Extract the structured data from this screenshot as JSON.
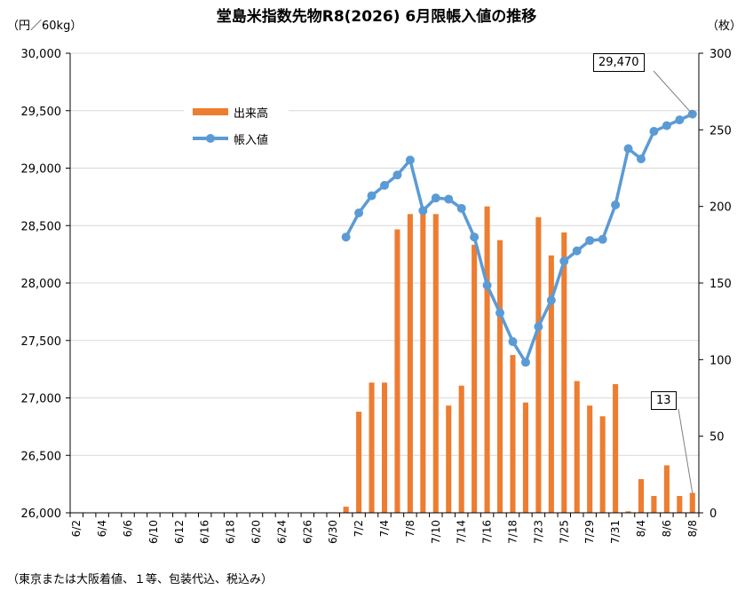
{
  "title": "堂島米指数先物R8(2026) 6月限帳入値の推移",
  "y_left_unit": "（円／60kg）",
  "y_right_unit": "（枚）",
  "footnote": "（東京または大阪着値、１等、包装代込、税込み）",
  "callouts": {
    "last_price": "29,470",
    "last_volume": "13"
  },
  "colors": {
    "volume": "#ED7D31",
    "price": "#5B9BD5",
    "grid": "#D9D9D9"
  },
  "chart_data": {
    "type": "bar+line",
    "title": "堂島米指数先物R8(2026) 6月限帳入値の推移",
    "xlabel": "",
    "ylabel_left": "（円／60kg）",
    "ylabel_right": "（枚）",
    "y_left_range": [
      26000,
      30000
    ],
    "y_left_ticks": [
      "26,000",
      "26,500",
      "27,000",
      "27,500",
      "28,000",
      "28,500",
      "29,000",
      "29,500",
      "30,000"
    ],
    "y_right_range": [
      0,
      300
    ],
    "y_right_ticks": [
      "0",
      "50",
      "100",
      "150",
      "200",
      "250",
      "300"
    ],
    "x_tick_labels": [
      "6/2",
      "6/4",
      "6/6",
      "6/10",
      "6/12",
      "6/16",
      "6/18",
      "6/20",
      "6/24",
      "6/26",
      "6/30",
      "7/2",
      "7/4",
      "7/8",
      "7/10",
      "7/14",
      "7/16",
      "7/18",
      "7/23",
      "7/25",
      "7/29",
      "7/31",
      "8/4",
      "8/6",
      "8/8"
    ],
    "legend": [
      "出来高",
      "帳入値"
    ],
    "legend_position": "upper-left",
    "grid": "horizontal",
    "dates": [
      "6/2",
      "6/3",
      "6/4",
      "6/5",
      "6/6",
      "6/9",
      "6/10",
      "6/11",
      "6/12",
      "6/13",
      "6/16",
      "6/17",
      "6/18",
      "6/19",
      "6/20",
      "6/23",
      "6/24",
      "6/25",
      "6/26",
      "6/27",
      "6/30",
      "7/1",
      "7/2",
      "7/3",
      "7/4",
      "7/7",
      "7/8",
      "7/9",
      "7/10",
      "7/11",
      "7/14",
      "7/15",
      "7/16",
      "7/17",
      "7/18",
      "7/22",
      "7/23",
      "7/24",
      "7/25",
      "7/28",
      "7/29",
      "7/30",
      "7/31",
      "8/1",
      "8/4",
      "8/5",
      "8/6",
      "8/7",
      "8/8"
    ],
    "series": [
      {
        "name": "出来高",
        "type": "bar",
        "axis": "right",
        "values": [
          0,
          0,
          0,
          0,
          0,
          0,
          0,
          0,
          0,
          0,
          0,
          0,
          0,
          0,
          0,
          0,
          0,
          0,
          0,
          0,
          0,
          4,
          66,
          85,
          85,
          185,
          195,
          195,
          195,
          70,
          83,
          175,
          200,
          178,
          103,
          72,
          193,
          168,
          183,
          86,
          70,
          63,
          84,
          1,
          22,
          11,
          31,
          11,
          13
        ]
      },
      {
        "name": "帳入値",
        "type": "line",
        "axis": "left",
        "values": [
          null,
          null,
          null,
          null,
          null,
          null,
          null,
          null,
          null,
          null,
          null,
          null,
          null,
          null,
          null,
          null,
          null,
          null,
          null,
          null,
          null,
          28400,
          28610,
          28760,
          28850,
          28940,
          29070,
          28630,
          28740,
          28730,
          28650,
          28400,
          27980,
          27740,
          27490,
          27310,
          27620,
          27850,
          28190,
          28280,
          28370,
          28380,
          28680,
          29170,
          29080,
          29320,
          29370,
          29420,
          29470
        ]
      }
    ]
  }
}
